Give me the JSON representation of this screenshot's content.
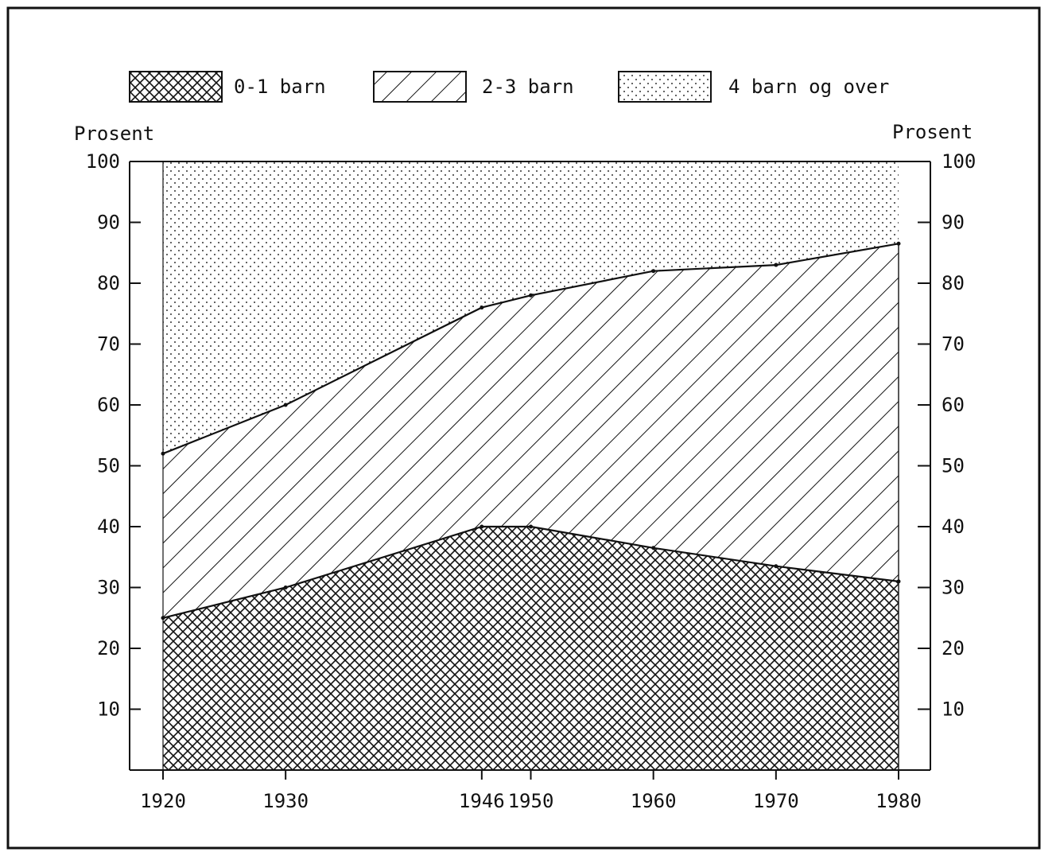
{
  "chart_data": {
    "type": "area",
    "stacked": true,
    "x": [
      1920,
      1930,
      1946,
      1950,
      1960,
      1970,
      1980
    ],
    "x_tick_labels": [
      "1920",
      "1930",
      "1946",
      "1950",
      "1960",
      "1970",
      "1980"
    ],
    "series": [
      {
        "name": "0-1 barn",
        "pattern": "crosshatch",
        "values": [
          25,
          30,
          40,
          40,
          36.5,
          33.5,
          31
        ]
      },
      {
        "name": "2-3 barn",
        "pattern": "diagonal",
        "values": [
          27,
          30,
          36,
          38,
          45.5,
          49.5,
          55.5
        ]
      },
      {
        "name": "4 barn og over",
        "pattern": "dots",
        "values": [
          48,
          40,
          24,
          22,
          18,
          17,
          13.5
        ]
      }
    ],
    "cumulative_boundaries": {
      "lower": [
        25,
        30,
        40,
        40,
        36.5,
        33.5,
        31
      ],
      "upper": [
        52,
        60,
        76,
        78,
        82,
        83,
        86.5
      ]
    },
    "ylabel_left": "Prosent",
    "ylabel_right": "Prosent",
    "ylim": [
      0,
      100
    ],
    "y_ticks_left": [
      10,
      20,
      30,
      40,
      50,
      60,
      70,
      80,
      90,
      100
    ],
    "y_ticks_right": [
      10,
      20,
      30,
      40,
      50,
      60,
      70,
      80,
      90,
      100
    ],
    "grid": false,
    "legend_position": "top"
  }
}
